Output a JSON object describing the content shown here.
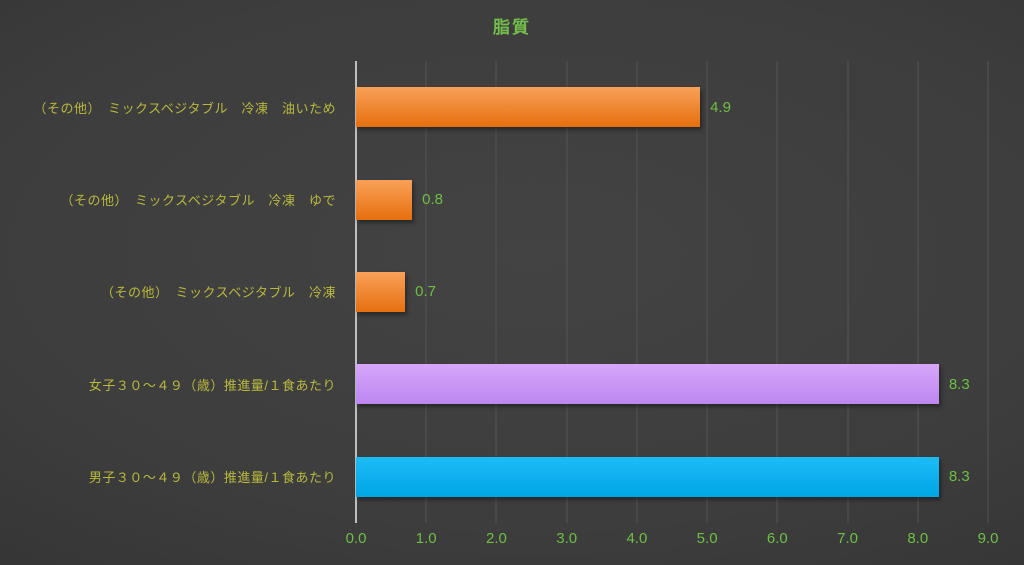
{
  "chart_data": {
    "type": "bar",
    "orientation": "horizontal",
    "title": "脂質",
    "categories": [
      "（その他）　ミックスベジタブル　冷凍　油いため",
      "（その他）　ミックスベジタブル　冷凍　ゆで",
      "（その他）　ミックスベジタブル　冷凍",
      "女子３０～４９（歳）推進量/１食あたり",
      "男子３０～４９（歳）推進量/１食あたり"
    ],
    "values": [
      4.9,
      0.8,
      0.7,
      8.3,
      8.3
    ],
    "data_labels": [
      "4.9",
      "0.8",
      "0.7",
      "8.3",
      "8.3"
    ],
    "bar_color_names": [
      "orange",
      "orange",
      "orange",
      "purple",
      "blue"
    ],
    "bar_colors": {
      "orange": "#ED7D31",
      "purple": "#CC99FA",
      "blue": "#00B0F0"
    },
    "bar_gradients": {
      "orange": [
        "#F9A159",
        "#E66F0E"
      ],
      "purple": [
        "#D6A7FC",
        "#BD86EF"
      ],
      "blue": [
        "#1CBCF8",
        "#00A5E3"
      ]
    },
    "xlabel": "",
    "ylabel": "",
    "xlim": [
      0,
      9
    ],
    "x_tick_labels": [
      "0.0",
      "1.0",
      "2.0",
      "3.0",
      "4.0",
      "5.0",
      "6.0",
      "7.0",
      "8.0",
      "9.0"
    ],
    "grid": true,
    "legend": false,
    "text_colors": {
      "title": "#72BE4A",
      "category_label": "#B9BA3D",
      "value_label": "#6EBF44",
      "tick_label": "#6EBF44"
    },
    "axis_line_color": "#BFBFBF",
    "gridline_color": "#545454"
  }
}
